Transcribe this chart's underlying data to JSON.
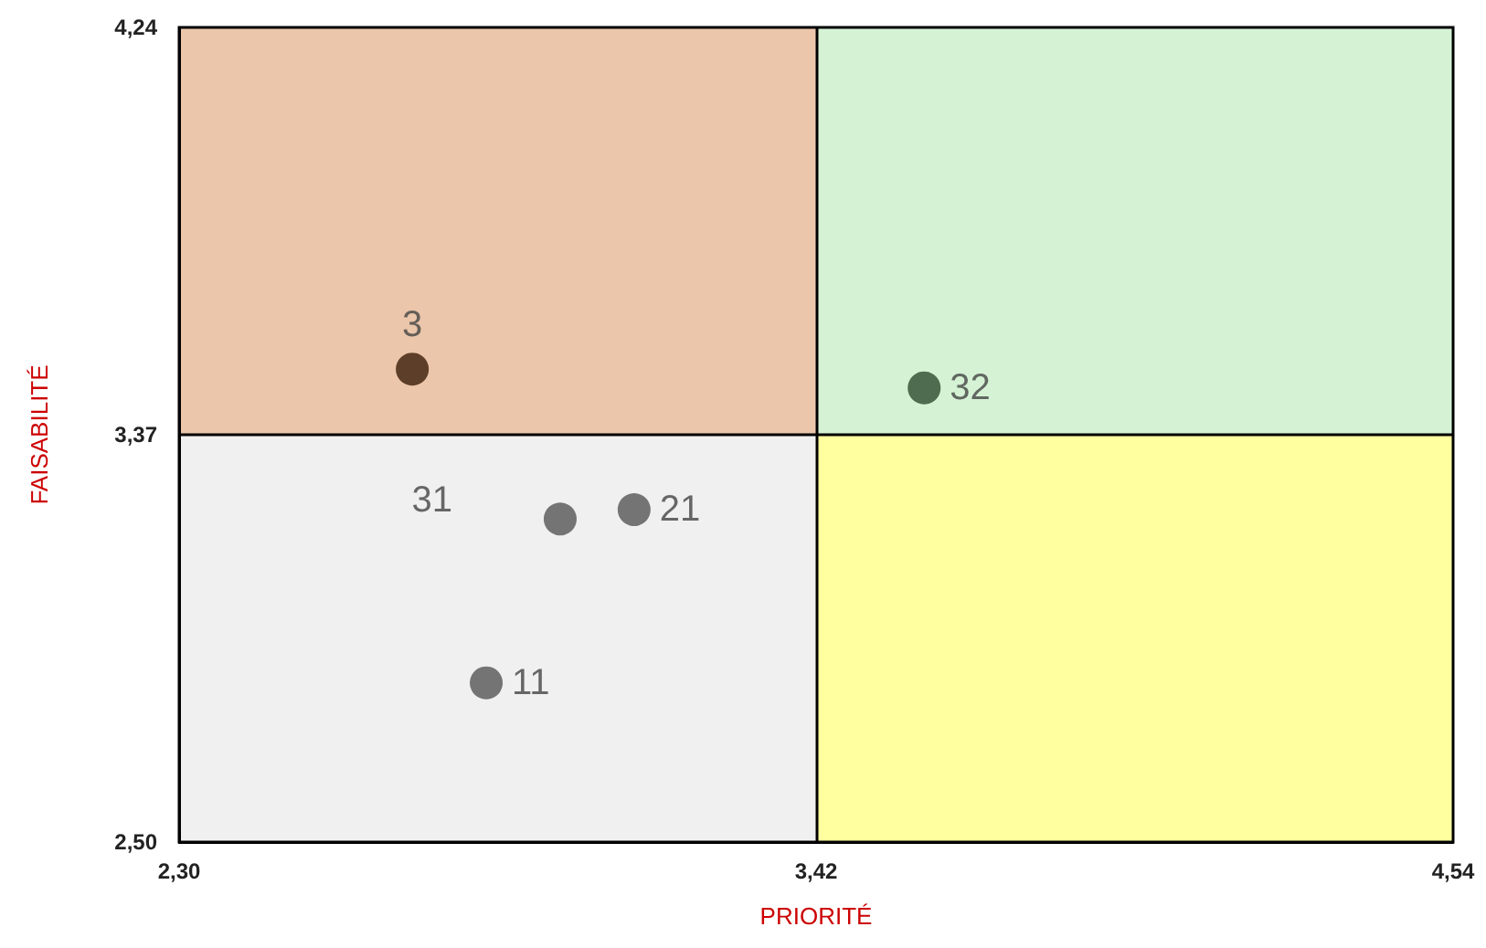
{
  "chart_data": {
    "type": "scatter",
    "xlabel": "PRIORITÉ",
    "ylabel": "FAISABILITÉ",
    "xlim": [
      2.3,
      4.54
    ],
    "xticks": [
      {
        "value": 2.3,
        "label": "2,30"
      },
      {
        "value": 3.42,
        "label": "3,42"
      },
      {
        "value": 4.54,
        "label": "4,54"
      }
    ],
    "ylim": [
      2.5,
      4.24
    ],
    "yticks": [
      {
        "value": 2.5,
        "label": "2,50"
      },
      {
        "value": 3.37,
        "label": "3,37"
      },
      {
        "value": 4.24,
        "label": "4,24"
      }
    ],
    "legend": false,
    "marker": "circle",
    "ref_lines": [
      {
        "axis": "x",
        "value": 3.42,
        "color": "#000000"
      },
      {
        "axis": "y",
        "value": 3.37,
        "color": "#000000"
      }
    ],
    "series": [
      {
        "name": "3",
        "color": "#3a1c08",
        "x": [
          2.71
        ],
        "values": [
          3.51
        ]
      },
      {
        "name": "32",
        "color": "#2e4a2e",
        "x": [
          3.61
        ],
        "values": [
          3.47
        ]
      },
      {
        "name": "31",
        "color": "#555555",
        "x": [
          2.97
        ],
        "values": [
          3.19
        ]
      },
      {
        "name": "21",
        "color": "#555555",
        "x": [
          3.1
        ],
        "values": [
          3.21
        ]
      },
      {
        "name": "11",
        "color": "#555555",
        "x": [
          2.84
        ],
        "values": [
          2.84
        ]
      }
    ]
  }
}
